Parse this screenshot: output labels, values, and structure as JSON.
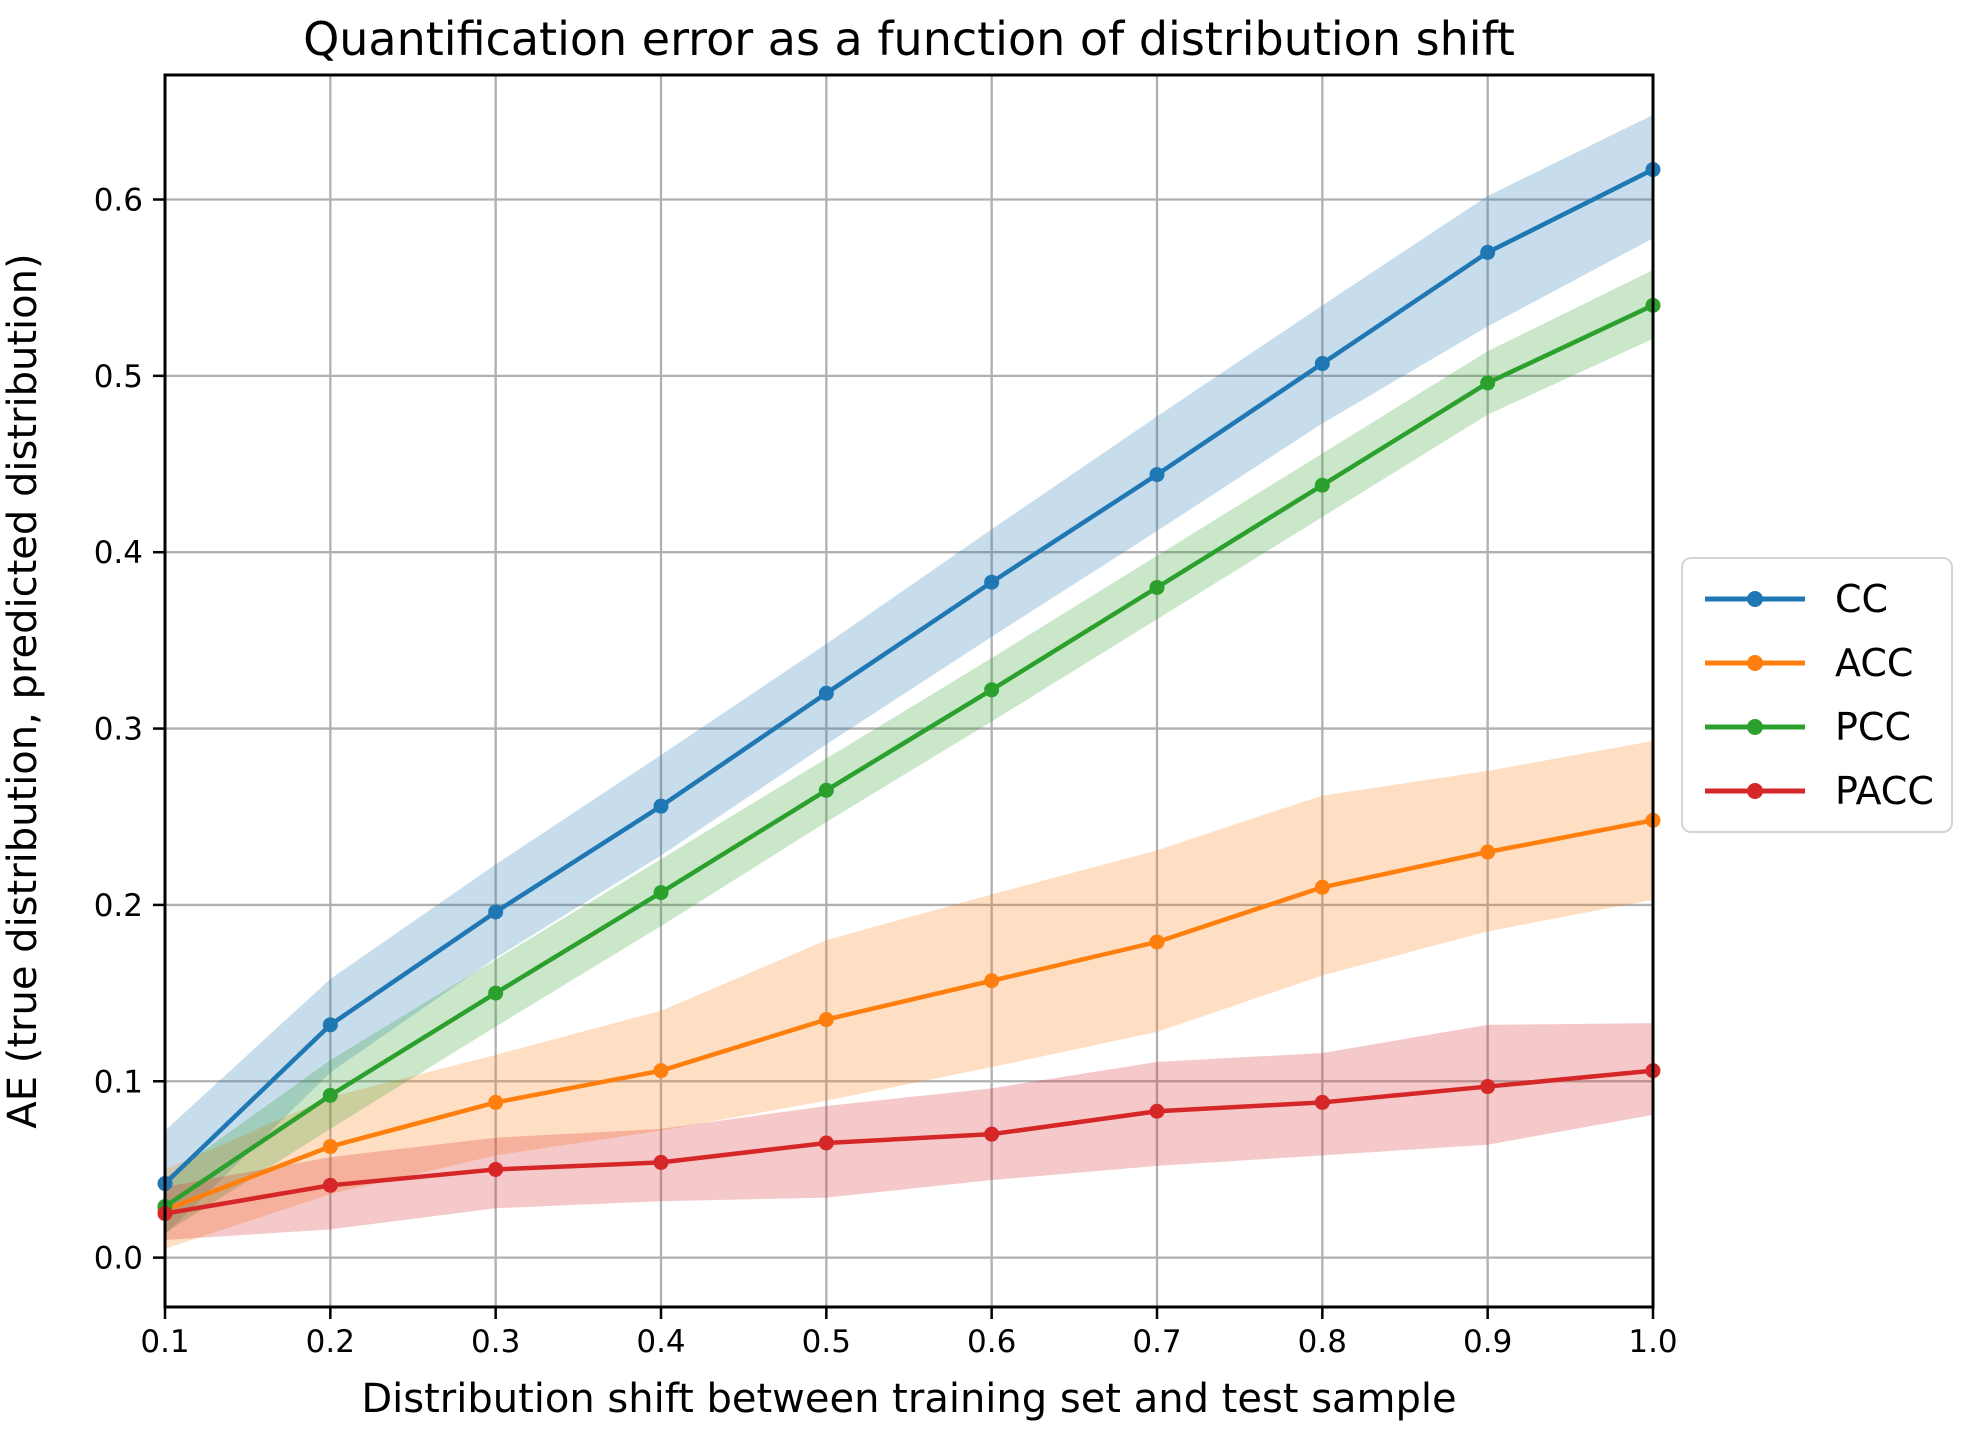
{
  "chart_data": {
    "type": "line",
    "title": "Quantification error as a function of distribution shift",
    "xlabel": "Distribution shift between training set and test sample",
    "ylabel": "AE (true distribution, predicted distribution)",
    "x": [
      0.1,
      0.2,
      0.3,
      0.4,
      0.5,
      0.6,
      0.7,
      0.8,
      0.9,
      1.0
    ],
    "xtick_labels": [
      "0.1",
      "0.2",
      "0.3",
      "0.4",
      "0.5",
      "0.6",
      "0.7",
      "0.8",
      "0.9",
      "1.0"
    ],
    "ytick_values": [
      0.0,
      0.1,
      0.2,
      0.3,
      0.4,
      0.5,
      0.6
    ],
    "ytick_labels": [
      "0.0",
      "0.1",
      "0.2",
      "0.3",
      "0.4",
      "0.5",
      "0.6"
    ],
    "xlim": [
      0.1,
      1.0
    ],
    "ylim": [
      -0.028,
      0.6706
    ],
    "grid": true,
    "grid_color": "#b0b0b0",
    "legend_position": "outside-right",
    "band_opacity": 0.25,
    "series": [
      {
        "name": "CC",
        "color": "#1f77b4",
        "values": [
          0.042,
          0.132,
          0.196,
          0.256,
          0.32,
          0.383,
          0.444,
          0.507,
          0.57,
          0.617
        ],
        "band_lower": [
          0.013,
          0.105,
          0.17,
          0.228,
          0.291,
          0.352,
          0.412,
          0.473,
          0.528,
          0.578
        ],
        "band_upper": [
          0.072,
          0.158,
          0.223,
          0.285,
          0.348,
          0.413,
          0.477,
          0.54,
          0.602,
          0.648
        ]
      },
      {
        "name": "ACC",
        "color": "#ff7f0e",
        "values": [
          0.027,
          0.063,
          0.088,
          0.106,
          0.135,
          0.157,
          0.179,
          0.21,
          0.23,
          0.248
        ],
        "band_lower": [
          0.005,
          0.036,
          0.058,
          0.072,
          0.089,
          0.108,
          0.128,
          0.16,
          0.185,
          0.203
        ],
        "band_upper": [
          0.05,
          0.091,
          0.115,
          0.14,
          0.18,
          0.206,
          0.231,
          0.262,
          0.276,
          0.293
        ]
      },
      {
        "name": "PCC",
        "color": "#2ca02c",
        "values": [
          0.029,
          0.092,
          0.15,
          0.207,
          0.265,
          0.322,
          0.38,
          0.438,
          0.496,
          0.54
        ],
        "band_lower": [
          0.014,
          0.073,
          0.131,
          0.188,
          0.247,
          0.304,
          0.362,
          0.42,
          0.478,
          0.521
        ],
        "band_upper": [
          0.045,
          0.112,
          0.169,
          0.226,
          0.283,
          0.34,
          0.398,
          0.456,
          0.514,
          0.56
        ]
      },
      {
        "name": "PACC",
        "color": "#d62728",
        "values": [
          0.025,
          0.041,
          0.05,
          0.054,
          0.065,
          0.07,
          0.083,
          0.088,
          0.097,
          0.106
        ],
        "band_lower": [
          0.01,
          0.016,
          0.028,
          0.032,
          0.034,
          0.044,
          0.052,
          0.058,
          0.064,
          0.081
        ],
        "band_upper": [
          0.04,
          0.057,
          0.068,
          0.073,
          0.086,
          0.096,
          0.111,
          0.116,
          0.132,
          0.133
        ]
      }
    ]
  }
}
